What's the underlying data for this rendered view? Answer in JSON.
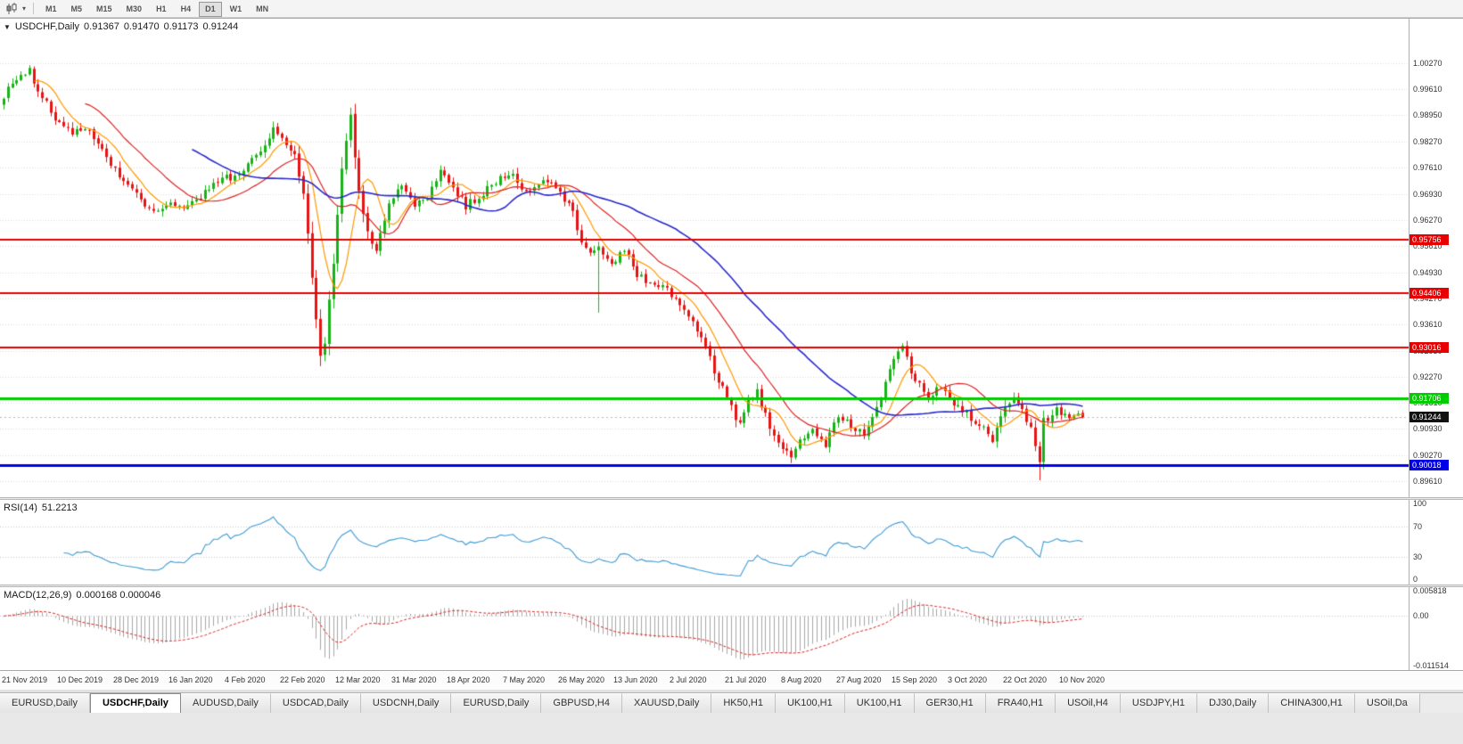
{
  "icons": {
    "chart_dropdown": "▼",
    "chart_type_caret": "▾"
  },
  "toolbar": {
    "timeframes": [
      "M1",
      "M5",
      "M15",
      "M30",
      "H1",
      "H4",
      "D1",
      "W1",
      "MN"
    ],
    "active_timeframe": "D1"
  },
  "chart": {
    "symbol_title": "USDCHF,Daily",
    "ohlc": {
      "open": "0.91367",
      "high": "0.91470",
      "low": "0.91173",
      "close": "0.91244"
    },
    "price_axis_ticks": [
      "1.00270",
      "0.99610",
      "0.98950",
      "0.98270",
      "0.97610",
      "0.96930",
      "0.96270",
      "0.95610",
      "0.94930",
      "0.94270",
      "0.93610",
      "0.92930",
      "0.92270",
      "0.91610",
      "0.90930",
      "0.90270",
      "0.89610"
    ],
    "current_price_tag": "0.91244",
    "hlines": [
      {
        "label": "0.95756",
        "value": 0.95756,
        "color": "#e60000",
        "thickness": 2
      },
      {
        "label": "0.94406",
        "value": 0.94406,
        "color": "#e60000",
        "thickness": 2
      },
      {
        "label": "0.93016",
        "value": 0.93016,
        "color": "#e60000",
        "thickness": 2
      },
      {
        "label": "0.91706",
        "value": 0.91706,
        "color": "#00cc00",
        "thickness": 3
      },
      {
        "label": "0.90018",
        "value": 0.90018,
        "color": "#0000e6",
        "thickness": 3
      }
    ],
    "date_axis": [
      {
        "label": "21 Nov 2019",
        "i": 0
      },
      {
        "label": "10 Dec 2019",
        "i": 13
      },
      {
        "label": "28 Dec 2019",
        "i": 26
      },
      {
        "label": "16 Jan 2020",
        "i": 39
      },
      {
        "label": "4 Feb 2020",
        "i": 52
      },
      {
        "label": "22 Feb 2020",
        "i": 65
      },
      {
        "label": "12 Mar 2020",
        "i": 78
      },
      {
        "label": "31 Mar 2020",
        "i": 91
      },
      {
        "label": "18 Apr 2020",
        "i": 104
      },
      {
        "label": "7 May 2020",
        "i": 117
      },
      {
        "label": "26 May 2020",
        "i": 130
      },
      {
        "label": "13 Jun 2020",
        "i": 143
      },
      {
        "label": "2 Jul 2020",
        "i": 156
      },
      {
        "label": "21 Jul 2020",
        "i": 169
      },
      {
        "label": "8 Aug 2020",
        "i": 182
      },
      {
        "label": "27 Aug 2020",
        "i": 195
      },
      {
        "label": "15 Sep 2020",
        "i": 208
      },
      {
        "label": "3 Oct 2020",
        "i": 221
      },
      {
        "label": "22 Oct 2020",
        "i": 234
      },
      {
        "label": "10 Nov 2020",
        "i": 247
      }
    ]
  },
  "rsi": {
    "title": "RSI(14)",
    "value_text": "51.2213",
    "axis_ticks": [
      "100",
      "70",
      "30",
      "0"
    ],
    "levels": [
      70,
      30
    ]
  },
  "macd": {
    "title": "MACD(12,26,9)",
    "values_text": "0.000168 0.000046",
    "axis_ticks": [
      "0.005818",
      "0.00",
      "-0.011514"
    ]
  },
  "tabs": {
    "items": [
      "EURUSD,Daily",
      "USDCHF,Daily",
      "AUDUSD,Daily",
      "USDCAD,Daily",
      "USDCNH,Daily",
      "EURUSD,Daily",
      "GBPUSD,H4",
      "XAUUSD,Daily",
      "HK50,H1",
      "UK100,H1",
      "UK100,H1",
      "GER30,H1",
      "FRA40,H1",
      "USOil,H4",
      "USDJPY,H1",
      "DJ30,Daily",
      "CHINA300,H1",
      "USOil,Da"
    ],
    "active_index": 1
  },
  "colors": {
    "up_candle": "#17b417",
    "down_candle": "#e81414",
    "grid": "#dcdcdc",
    "rsi_line": "#3d9bd5",
    "macd_hist": "#a6a6a6",
    "macd_signal": "#dd2222",
    "current_price_tag_bg": "#111111",
    "bid_line": "#b8b8b8"
  },
  "chart_data": {
    "type": "candlestick",
    "symbol": "USDCHF",
    "timeframe": "Daily",
    "visible_range": [
      "21 Nov 2019",
      "18 Nov 2020"
    ],
    "last_candle_ohlc": [
      0.91367,
      0.9147,
      0.91173,
      0.91244
    ],
    "n_candles": 253,
    "price_range_top": 1.014,
    "price_range_bottom": 0.8919,
    "noise": 0.0022,
    "close_anchors": [
      [
        0,
        0.9945
      ],
      [
        3,
        0.9985
      ],
      [
        6,
        1.0008
      ],
      [
        9,
        0.9938
      ],
      [
        13,
        0.9872
      ],
      [
        16,
        0.985
      ],
      [
        19,
        0.9862
      ],
      [
        23,
        0.98
      ],
      [
        26,
        0.9755
      ],
      [
        30,
        0.97
      ],
      [
        33,
        0.966
      ],
      [
        36,
        0.9642
      ],
      [
        39,
        0.968
      ],
      [
        42,
        0.9648
      ],
      [
        45,
        0.9672
      ],
      [
        48,
        0.971
      ],
      [
        52,
        0.9732
      ],
      [
        56,
        0.9752
      ],
      [
        60,
        0.98
      ],
      [
        63,
        0.9852
      ],
      [
        65,
        0.984
      ],
      [
        68,
        0.9788
      ],
      [
        70,
        0.97
      ],
      [
        72,
        0.948
      ],
      [
        74,
        0.9275
      ],
      [
        75,
        0.932
      ],
      [
        77,
        0.952
      ],
      [
        79,
        0.9755
      ],
      [
        81,
        0.9888
      ],
      [
        83,
        0.97
      ],
      [
        85,
        0.959
      ],
      [
        87,
        0.9558
      ],
      [
        90,
        0.966
      ],
      [
        93,
        0.9715
      ],
      [
        96,
        0.9665
      ],
      [
        99,
        0.969
      ],
      [
        102,
        0.9755
      ],
      [
        105,
        0.9712
      ],
      [
        108,
        0.966
      ],
      [
        111,
        0.9688
      ],
      [
        114,
        0.9714
      ],
      [
        118,
        0.9745
      ],
      [
        122,
        0.9705
      ],
      [
        126,
        0.9722
      ],
      [
        130,
        0.9705
      ],
      [
        133,
        0.964
      ],
      [
        136,
        0.9545
      ],
      [
        139,
        0.9565
      ],
      [
        142,
        0.9515
      ],
      [
        145,
        0.9552
      ],
      [
        148,
        0.9488
      ],
      [
        151,
        0.947
      ],
      [
        155,
        0.9445
      ],
      [
        158,
        0.941
      ],
      [
        161,
        0.9375
      ],
      [
        164,
        0.93
      ],
      [
        167,
        0.9215
      ],
      [
        170,
        0.915
      ],
      [
        172,
        0.91
      ],
      [
        174,
        0.916
      ],
      [
        176,
        0.9185
      ],
      [
        178,
        0.913
      ],
      [
        181,
        0.905
      ],
      [
        184,
        0.9022
      ],
      [
        186,
        0.9062
      ],
      [
        189,
        0.9092
      ],
      [
        192,
        0.9052
      ],
      [
        195,
        0.9125
      ],
      [
        198,
        0.91
      ],
      [
        201,
        0.9085
      ],
      [
        204,
        0.914
      ],
      [
        207,
        0.9255
      ],
      [
        210,
        0.9302
      ],
      [
        213,
        0.9215
      ],
      [
        216,
        0.9172
      ],
      [
        219,
        0.92
      ],
      [
        222,
        0.9152
      ],
      [
        225,
        0.9132
      ],
      [
        228,
        0.9102
      ],
      [
        231,
        0.9066
      ],
      [
        234,
        0.915
      ],
      [
        236,
        0.9176
      ],
      [
        239,
        0.9122
      ],
      [
        241,
        0.9056
      ],
      [
        242,
        0.9002
      ],
      [
        243,
        0.9112
      ],
      [
        246,
        0.915
      ],
      [
        249,
        0.9116
      ],
      [
        252,
        0.9124
      ]
    ],
    "low_spikes": [
      [
        139,
        0.939
      ],
      [
        184,
        0.9006
      ],
      [
        242,
        0.8962
      ]
    ],
    "moving_averages": [
      {
        "period": 8,
        "color": "#ff9900"
      },
      {
        "period": 20,
        "color": "#dd2222"
      },
      {
        "period": 45,
        "color": "#2929cc"
      }
    ],
    "rsi": {
      "period": 14,
      "current": 51.2213,
      "scale": [
        0,
        100
      ],
      "dotted_levels": [
        70,
        30
      ]
    },
    "macd": {
      "fast": 12,
      "slow": 26,
      "signal": 9,
      "current_main": 0.000168,
      "current_signal": 4.6e-05,
      "range_top": 0.005818,
      "range_bottom": -0.011514
    },
    "hline_values": [
      0.95756,
      0.94406,
      0.93016,
      0.91706,
      0.90018
    ],
    "current_price": 0.91244
  }
}
